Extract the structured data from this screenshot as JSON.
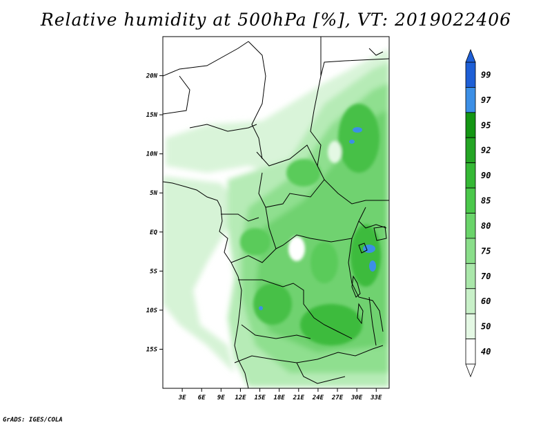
{
  "title": "Relative humidity at 500hPa [%], VT: 2019022406",
  "credit": "GrADS: IGES/COLA",
  "map": {
    "lon_range": [
      0,
      35
    ],
    "lat_range": [
      -20,
      25
    ],
    "lat_ticks": [
      {
        "value": 20,
        "label": "20N"
      },
      {
        "value": 15,
        "label": "15N"
      },
      {
        "value": 10,
        "label": "10N"
      },
      {
        "value": 5,
        "label": "5N"
      },
      {
        "value": 0,
        "label": "EQ"
      },
      {
        "value": -5,
        "label": "5S"
      },
      {
        "value": -10,
        "label": "10S"
      },
      {
        "value": -15,
        "label": "15S"
      }
    ],
    "lon_ticks": [
      {
        "value": 3,
        "label": "3E"
      },
      {
        "value": 6,
        "label": "6E"
      },
      {
        "value": 9,
        "label": "9E"
      },
      {
        "value": 12,
        "label": "12E"
      },
      {
        "value": 15,
        "label": "15E"
      },
      {
        "value": 18,
        "label": "18E"
      },
      {
        "value": 21,
        "label": "21E"
      },
      {
        "value": 24,
        "label": "24E"
      },
      {
        "value": 27,
        "label": "27E"
      },
      {
        "value": 30,
        "label": "30E"
      },
      {
        "value": 33,
        "label": "33E"
      }
    ]
  },
  "colorbar": {
    "levels": [
      "99",
      "97",
      "95",
      "92",
      "90",
      "85",
      "80",
      "75",
      "70",
      "60",
      "50",
      "40"
    ],
    "colors": [
      "#1e5fd6",
      "#3c8fe6",
      "#149614",
      "#24a524",
      "#35b835",
      "#4bc84b",
      "#6ad46a",
      "#8ade8a",
      "#aae7aa",
      "#c8f0c8",
      "#e4f8e4",
      "#ffffff"
    ]
  }
}
